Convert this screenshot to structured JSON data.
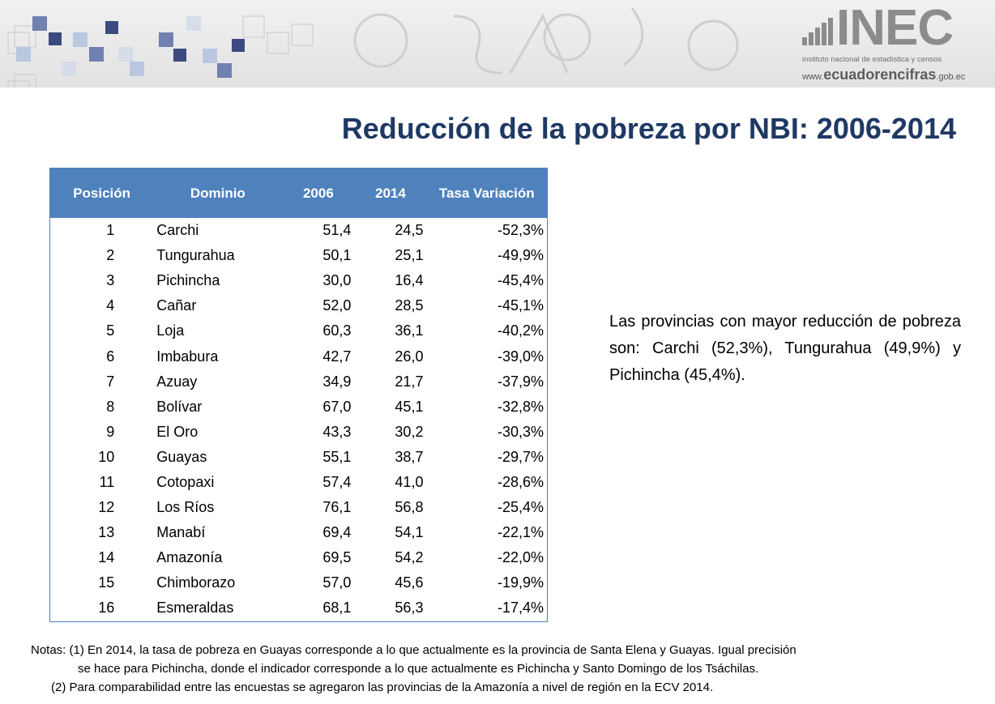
{
  "header": {
    "logo": {
      "name": "INEC",
      "tagline": "instituto nacional de estadística y censos",
      "site_prefix": "www.",
      "site_main": "ecuadorencifras",
      "site_suffix": ".gob.ec"
    }
  },
  "title": "Reducción de la pobreza por NBI: 2006-2014",
  "table": {
    "headers": [
      "Posición",
      "Dominio",
      "2006",
      "2014",
      "Tasa Variación"
    ],
    "rows": [
      [
        "1",
        "Carchi",
        "51,4",
        "24,5",
        "-52,3%"
      ],
      [
        "2",
        "Tungurahua",
        "50,1",
        "25,1",
        "-49,9%"
      ],
      [
        "3",
        "Pichincha",
        "30,0",
        "16,4",
        "-45,4%"
      ],
      [
        "4",
        "Cañar",
        "52,0",
        "28,5",
        "-45,1%"
      ],
      [
        "5",
        "Loja",
        "60,3",
        "36,1",
        "-40,2%"
      ],
      [
        "6",
        "Imbabura",
        "42,7",
        "26,0",
        "-39,0%"
      ],
      [
        "7",
        "Azuay",
        "34,9",
        "21,7",
        "-37,9%"
      ],
      [
        "8",
        "Bolívar",
        "67,0",
        "45,1",
        "-32,8%"
      ],
      [
        "9",
        "El Oro",
        "43,3",
        "30,2",
        "-30,3%"
      ],
      [
        "10",
        "Guayas",
        "55,1",
        "38,7",
        "-29,7%"
      ],
      [
        "11",
        "Cotopaxi",
        "57,4",
        "41,0",
        "-28,6%"
      ],
      [
        "12",
        "Los Ríos",
        "76,1",
        "56,8",
        "-25,4%"
      ],
      [
        "13",
        "Manabí",
        "69,4",
        "54,1",
        "-22,1%"
      ],
      [
        "14",
        "Amazonía",
        "69,5",
        "54,2",
        "-22,0%"
      ],
      [
        "15",
        "Chimborazo",
        "57,0",
        "45,6",
        "-19,9%"
      ],
      [
        "16",
        "Esmeraldas",
        "68,1",
        "56,3",
        "-17,4%"
      ]
    ]
  },
  "summary": "Las provincias con mayor reducción de pobreza son: Carchi (52,3%), Tungurahua (49,9%) y Pichincha (45,4%).",
  "notes": {
    "line1": "Notas: (1) En 2014, la tasa de pobreza en Guayas corresponde a lo que actualmente es la provincia de Santa Elena y Guayas. Igual precisión",
    "line1b": "se hace para Pichincha, donde el indicador corresponde a lo que actualmente es Pichincha y Santo Domingo de los Tsáchilas.",
    "line2": "(2) Para comparabilidad entre las encuestas se agregaron las provincias de la Amazonía a nivel de región en la ECV 2014."
  },
  "colors": {
    "title": "#1f3864",
    "table_header": "#4f81bd",
    "table_border": "#4a7ebb"
  }
}
